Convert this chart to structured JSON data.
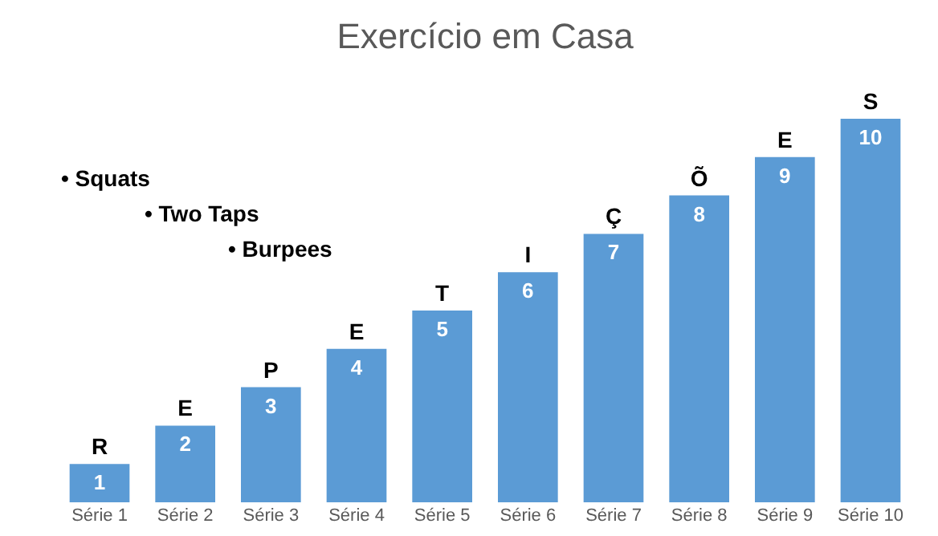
{
  "chart_data": {
    "type": "bar",
    "title": "Exercício em Casa",
    "categories": [
      "Série 1",
      "Série 2",
      "Série 3",
      "Série 4",
      "Série 5",
      "Série 6",
      "Série 7",
      "Série 8",
      "Série 9",
      "Série 10"
    ],
    "values": [
      1,
      2,
      3,
      4,
      5,
      6,
      7,
      8,
      9,
      10
    ],
    "color": "#5b9bd5",
    "data_labels": true,
    "grid": false,
    "annotations": [
      {
        "text": "R",
        "x": "Série 1",
        "y": 1
      },
      {
        "text": "E",
        "x": "Série 2",
        "y": 2
      },
      {
        "text": "P",
        "x": "Série 3",
        "y": 3
      },
      {
        "text": "E",
        "x": "Série 4",
        "y": 4
      },
      {
        "text": "T",
        "x": "Série 5",
        "y": 5
      },
      {
        "text": "I",
        "x": "Série 6",
        "y": 6
      },
      {
        "text": "Ç",
        "x": "Série 7",
        "y": 7
      },
      {
        "text": "Õ",
        "x": "Série 8",
        "y": 8
      },
      {
        "text": "E",
        "x": "Série 9",
        "y": 9
      },
      {
        "text": "S",
        "x": "Série 10",
        "y": 10
      },
      "•      Squats",
      "•      Two Taps",
      "•      Burpees"
    ]
  }
}
